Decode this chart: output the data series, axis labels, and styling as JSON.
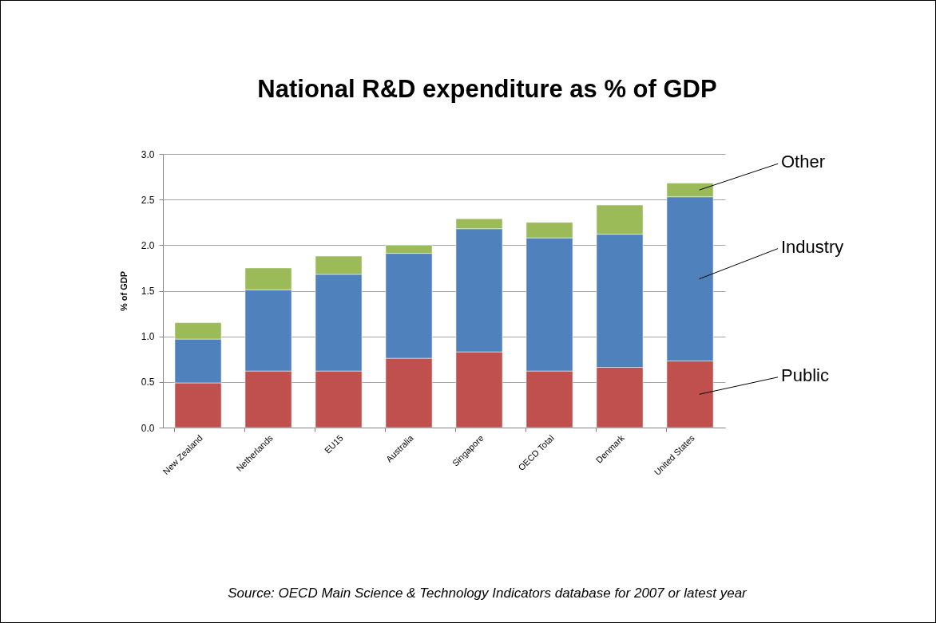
{
  "chart_data": {
    "type": "bar",
    "title": "National R&D expenditure as % of GDP",
    "ylabel": "% of GDP",
    "categories": [
      "New Zealand",
      "Netherlands",
      "EU15",
      "Australia",
      "Singapore",
      "OECD Total",
      "Denmark",
      "United States"
    ],
    "stacked": true,
    "series": [
      {
        "name": "Public",
        "color": "#c0504d",
        "values": [
          0.49,
          0.62,
          0.62,
          0.76,
          0.83,
          0.62,
          0.66,
          0.73
        ]
      },
      {
        "name": "Industry",
        "color": "#4f81bd",
        "values": [
          0.48,
          0.89,
          1.06,
          1.15,
          1.35,
          1.46,
          1.46,
          1.8
        ]
      },
      {
        "name": "Other",
        "color": "#9bbb59",
        "values": [
          0.18,
          0.24,
          0.2,
          0.09,
          0.11,
          0.17,
          0.32,
          0.15
        ]
      }
    ],
    "ylim": [
      0,
      3
    ],
    "yticks": [
      {
        "value": 0,
        "label": "0.0"
      },
      {
        "value": 0.5,
        "label": "0.5"
      },
      {
        "value": 1,
        "label": "1.0"
      },
      {
        "value": 1.5,
        "label": "1.5"
      },
      {
        "value": 2,
        "label": "2.0"
      },
      {
        "value": 2.5,
        "label": "2.5"
      },
      {
        "value": 3,
        "label": "3.0"
      }
    ],
    "grid": "y",
    "legend": "right",
    "annotations": [
      "Source: OECD Main Science & Technology Indicators database for 2007 or latest year"
    ]
  }
}
